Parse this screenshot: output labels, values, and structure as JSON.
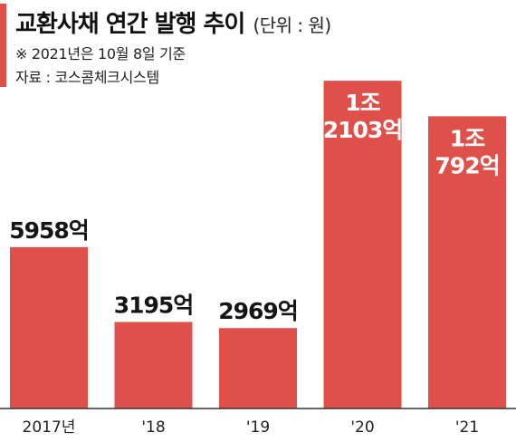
{
  "title": "교환사채 연간 발행 추이",
  "unit": "(단위 : 원)",
  "notes": [
    "※ 2021년은 10월 8일 기준",
    "자료 : 코스콤체크시스템"
  ],
  "colors": {
    "bar": "#e0504a",
    "accent": "#e0504a",
    "axis": "#333333"
  },
  "chart_data": {
    "type": "bar",
    "categories": [
      "2017년",
      "'18",
      "'19",
      "'20",
      "'21"
    ],
    "values": [
      595800000000,
      319500000000,
      296900000000,
      1210300000000,
      1079200000000
    ],
    "data_labels": [
      [
        "5958억"
      ],
      [
        "3195억"
      ],
      [
        "2969억"
      ],
      [
        "1조",
        "2103억"
      ],
      [
        "1조",
        "792억"
      ]
    ],
    "title": "교환사채 연간 발행 추이",
    "xlabel": "",
    "ylabel": "",
    "grid": false,
    "legend": "none"
  }
}
